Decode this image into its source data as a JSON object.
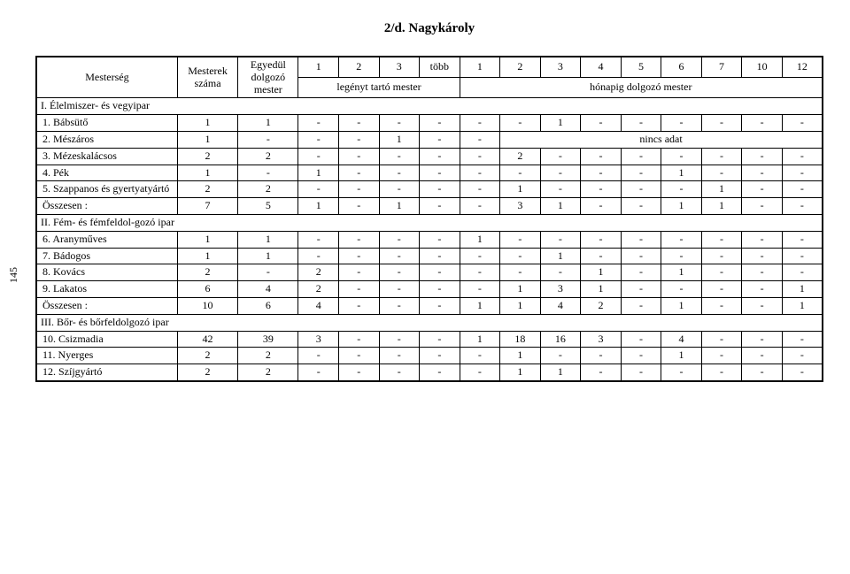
{
  "side_page_number": "145",
  "title": "2/d. Nagykároly",
  "header": {
    "mesterseg": "Mesterség",
    "mesterek_szama": "Mesterek száma",
    "egyedul": "Egyedül dolgozó mester",
    "cols": [
      "1",
      "2",
      "3",
      "több",
      "1",
      "2",
      "3",
      "4",
      "5",
      "6",
      "7",
      "10",
      "12"
    ],
    "span1": "legényt tartó mester",
    "span2": "hónapig dolgozó mester"
  },
  "rows": [
    {
      "type": "section",
      "label": "I. Élelmiszer- és vegyipar"
    },
    {
      "type": "data",
      "label": "1. Bábsütő",
      "m": "1",
      "e": "1",
      "c": [
        "-",
        "-",
        "-",
        "-",
        "-",
        "-",
        "1",
        "-",
        "-",
        "-",
        "-",
        "-",
        "-"
      ]
    },
    {
      "type": "nincs",
      "label": "2. Mészáros",
      "m": "1",
      "e": "-",
      "pre": [
        "-",
        "-",
        "1",
        "-",
        "-"
      ],
      "nincs": "nincs adat"
    },
    {
      "type": "data",
      "label": "3. Mézeskalácsos",
      "m": "2",
      "e": "2",
      "c": [
        "-",
        "-",
        "-",
        "-",
        "-",
        "2",
        "-",
        "-",
        "-",
        "-",
        "-",
        "-",
        "-"
      ]
    },
    {
      "type": "data",
      "label": "4. Pék",
      "m": "1",
      "e": "-",
      "c": [
        "1",
        "-",
        "-",
        "-",
        "-",
        "-",
        "-",
        "-",
        "-",
        "1",
        "-",
        "-",
        "-"
      ]
    },
    {
      "type": "data",
      "label": "5. Szappanos és gyertyatyártó",
      "m": "2",
      "e": "2",
      "c": [
        "-",
        "-",
        "-",
        "-",
        "-",
        "1",
        "-",
        "-",
        "-",
        "-",
        "1",
        "-",
        "-"
      ]
    },
    {
      "type": "data",
      "label": "Összesen :",
      "m": "7",
      "e": "5",
      "c": [
        "1",
        "-",
        "1",
        "-",
        "-",
        "3",
        "1",
        "-",
        "-",
        "1",
        "1",
        "-",
        "-"
      ]
    },
    {
      "type": "section",
      "label": "II. Fém- és fémfeldol-gozó ipar"
    },
    {
      "type": "data",
      "label": "6. Aranyműves",
      "m": "1",
      "e": "1",
      "c": [
        "-",
        "-",
        "-",
        "-",
        "1",
        "-",
        "-",
        "-",
        "-",
        "-",
        "-",
        "-",
        "-"
      ]
    },
    {
      "type": "data",
      "label": "7. Bádogos",
      "m": "1",
      "e": "1",
      "c": [
        "-",
        "-",
        "-",
        "-",
        "-",
        "-",
        "1",
        "-",
        "-",
        "-",
        "-",
        "-",
        "-"
      ]
    },
    {
      "type": "data",
      "label": "8. Kovács",
      "m": "2",
      "e": "-",
      "c": [
        "2",
        "-",
        "-",
        "-",
        "-",
        "-",
        "-",
        "1",
        "-",
        "1",
        "-",
        "-",
        "-"
      ]
    },
    {
      "type": "data",
      "label": "9. Lakatos",
      "m": "6",
      "e": "4",
      "c": [
        "2",
        "-",
        "-",
        "-",
        "-",
        "1",
        "3",
        "1",
        "-",
        "-",
        "-",
        "-",
        "1"
      ]
    },
    {
      "type": "data",
      "label": "Összesen :",
      "m": "10",
      "e": "6",
      "c": [
        "4",
        "-",
        "-",
        "-",
        "1",
        "1",
        "4",
        "2",
        "-",
        "1",
        "-",
        "-",
        "1"
      ]
    },
    {
      "type": "section",
      "label": "III. Bőr- és bőrfeldolgozó ipar"
    },
    {
      "type": "data",
      "label": "10. Csizmadia",
      "m": "42",
      "e": "39",
      "c": [
        "3",
        "-",
        "-",
        "-",
        "1",
        "18",
        "16",
        "3",
        "-",
        "4",
        "-",
        "-",
        "-"
      ]
    },
    {
      "type": "data",
      "label": "11. Nyerges",
      "m": "2",
      "e": "2",
      "c": [
        "-",
        "-",
        "-",
        "-",
        "-",
        "1",
        "-",
        "-",
        "-",
        "1",
        "-",
        "-",
        "-"
      ]
    },
    {
      "type": "data",
      "label": "12. Szíjgyártó",
      "m": "2",
      "e": "2",
      "c": [
        "-",
        "-",
        "-",
        "-",
        "-",
        "1",
        "1",
        "-",
        "-",
        "-",
        "-",
        "-",
        "-"
      ]
    }
  ]
}
